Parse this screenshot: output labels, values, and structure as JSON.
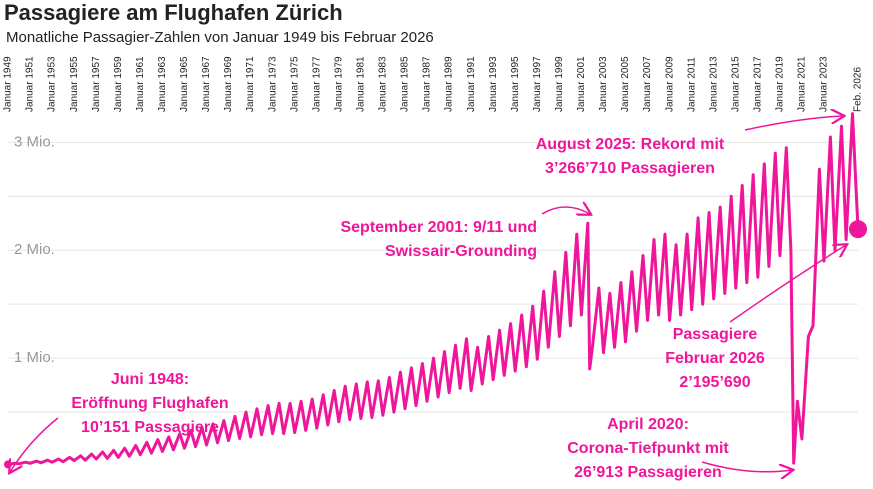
{
  "chart_data": {
    "type": "line",
    "title": "Passagiere am Flughafen Zürich",
    "subtitle": "Monatliche Passagier-Zahlen von Januar 1949 bis Februar 2026",
    "color": "#f0169b",
    "grid": true,
    "ylim": [
      0,
      3300000
    ],
    "yticks": [
      {
        "value": 1000000,
        "label": "1 Mio."
      },
      {
        "value": 2000000,
        "label": "2 Mio."
      },
      {
        "value": 3000000,
        "label": "3 Mio."
      }
    ],
    "ygrid": [
      500000,
      1000000,
      1500000,
      2000000,
      2500000,
      3000000
    ],
    "xlim": [
      "1949-01",
      "2026-02"
    ],
    "xticks": [
      {
        "value": "1949-01",
        "label": "Januar 1949"
      },
      {
        "value": "1951-01",
        "label": "Januar 1951"
      },
      {
        "value": "1953-01",
        "label": "Januar 1953"
      },
      {
        "value": "1955-01",
        "label": "Januar 1955"
      },
      {
        "value": "1957-01",
        "label": "Januar 1957"
      },
      {
        "value": "1959-01",
        "label": "Januar 1959"
      },
      {
        "value": "1961-01",
        "label": "Januar 1961"
      },
      {
        "value": "1963-01",
        "label": "Januar 1963"
      },
      {
        "value": "1965-01",
        "label": "Januar 1965"
      },
      {
        "value": "1967-01",
        "label": "Januar 1967"
      },
      {
        "value": "1969-01",
        "label": "Januar 1969"
      },
      {
        "value": "1971-01",
        "label": "Januar 1971"
      },
      {
        "value": "1973-01",
        "label": "Januar 1973"
      },
      {
        "value": "1975-01",
        "label": "Januar 1975"
      },
      {
        "value": "1977-01",
        "label": "Januar 1977"
      },
      {
        "value": "1979-01",
        "label": "Januar 1979"
      },
      {
        "value": "1981-01",
        "label": "Januar 1981"
      },
      {
        "value": "1983-01",
        "label": "Januar 1983"
      },
      {
        "value": "1985-01",
        "label": "Januar 1985"
      },
      {
        "value": "1987-01",
        "label": "Januar 1987"
      },
      {
        "value": "1989-01",
        "label": "Januar 1989"
      },
      {
        "value": "1991-01",
        "label": "Januar 1991"
      },
      {
        "value": "1993-01",
        "label": "Januar 1993"
      },
      {
        "value": "1995-01",
        "label": "Januar 1995"
      },
      {
        "value": "1997-01",
        "label": "Januar 1997"
      },
      {
        "value": "1999-01",
        "label": "Januar 1999"
      },
      {
        "value": "2001-01",
        "label": "Januar 2001"
      },
      {
        "value": "2003-01",
        "label": "Januar 2003"
      },
      {
        "value": "2005-01",
        "label": "Januar 2005"
      },
      {
        "value": "2007-01",
        "label": "Januar 2007"
      },
      {
        "value": "2009-01",
        "label": "Januar 2009"
      },
      {
        "value": "2011-01",
        "label": "Januar 2011"
      },
      {
        "value": "2013-01",
        "label": "Januar 2013"
      },
      {
        "value": "2015-01",
        "label": "Januar 2015"
      },
      {
        "value": "2017-01",
        "label": "Januar 2017"
      },
      {
        "value": "2019-01",
        "label": "Januar 2019"
      },
      {
        "value": "2021-01",
        "label": "Januar 2021"
      },
      {
        "value": "2023-01",
        "label": "Januar 2023"
      },
      {
        "value": "2026-02",
        "label": "Feb. 2026"
      }
    ],
    "x": [
      "1949-01",
      "1949-08",
      "1950-01",
      "1950-08",
      "1951-01",
      "1951-08",
      "1952-01",
      "1952-08",
      "1953-01",
      "1953-08",
      "1954-01",
      "1954-08",
      "1955-01",
      "1955-08",
      "1956-01",
      "1956-08",
      "1957-01",
      "1957-08",
      "1958-01",
      "1958-08",
      "1959-01",
      "1959-08",
      "1960-01",
      "1960-08",
      "1961-01",
      "1961-08",
      "1962-01",
      "1962-08",
      "1963-01",
      "1963-08",
      "1964-01",
      "1964-08",
      "1965-01",
      "1965-08",
      "1966-01",
      "1966-08",
      "1967-01",
      "1967-08",
      "1968-01",
      "1968-08",
      "1969-01",
      "1969-08",
      "1970-01",
      "1970-08",
      "1971-01",
      "1971-08",
      "1972-01",
      "1972-08",
      "1973-01",
      "1973-08",
      "1974-01",
      "1974-08",
      "1975-01",
      "1975-08",
      "1976-01",
      "1976-08",
      "1977-01",
      "1977-08",
      "1978-01",
      "1978-08",
      "1979-01",
      "1979-08",
      "1980-01",
      "1980-08",
      "1981-01",
      "1981-08",
      "1982-01",
      "1982-08",
      "1983-01",
      "1983-08",
      "1984-01",
      "1984-08",
      "1985-01",
      "1985-08",
      "1986-01",
      "1986-08",
      "1987-01",
      "1987-08",
      "1988-01",
      "1988-08",
      "1989-01",
      "1989-08",
      "1990-01",
      "1990-08",
      "1991-01",
      "1991-08",
      "1992-01",
      "1992-08",
      "1993-01",
      "1993-08",
      "1994-01",
      "1994-08",
      "1995-01",
      "1995-08",
      "1996-01",
      "1996-08",
      "1997-01",
      "1997-08",
      "1998-01",
      "1998-08",
      "1999-01",
      "1999-08",
      "2000-01",
      "2000-08",
      "2001-01",
      "2001-08",
      "2001-10",
      "2002-01",
      "2002-08",
      "2003-01",
      "2003-08",
      "2004-01",
      "2004-08",
      "2005-01",
      "2005-08",
      "2006-01",
      "2006-08",
      "2007-01",
      "2007-08",
      "2008-01",
      "2008-08",
      "2009-01",
      "2009-08",
      "2010-01",
      "2010-08",
      "2011-01",
      "2011-08",
      "2012-01",
      "2012-08",
      "2013-01",
      "2013-08",
      "2014-01",
      "2014-08",
      "2015-01",
      "2015-08",
      "2016-01",
      "2016-08",
      "2017-01",
      "2017-08",
      "2018-01",
      "2018-08",
      "2019-01",
      "2019-08",
      "2020-01",
      "2020-04",
      "2020-08",
      "2021-01",
      "2021-08",
      "2022-01",
      "2022-08",
      "2023-01",
      "2023-08",
      "2024-01",
      "2024-08",
      "2025-01",
      "2025-08",
      "2026-02"
    ],
    "values": [
      15000,
      25000,
      20000,
      35000,
      25000,
      45000,
      30000,
      55000,
      35000,
      65000,
      40000,
      80000,
      50000,
      95000,
      55000,
      110000,
      65000,
      130000,
      70000,
      145000,
      80000,
      165000,
      90000,
      190000,
      105000,
      220000,
      120000,
      245000,
      135000,
      270000,
      150000,
      300000,
      165000,
      330000,
      180000,
      360000,
      195000,
      390000,
      215000,
      420000,
      235000,
      460000,
      255000,
      500000,
      270000,
      530000,
      290000,
      560000,
      300000,
      580000,
      300000,
      580000,
      310000,
      600000,
      330000,
      620000,
      350000,
      660000,
      380000,
      700000,
      410000,
      740000,
      430000,
      760000,
      440000,
      780000,
      450000,
      790000,
      470000,
      820000,
      500000,
      870000,
      530000,
      910000,
      560000,
      950000,
      600000,
      1000000,
      640000,
      1060000,
      680000,
      1120000,
      720000,
      1180000,
      700000,
      1100000,
      760000,
      1200000,
      800000,
      1260000,
      840000,
      1320000,
      880000,
      1400000,
      920000,
      1480000,
      990000,
      1620000,
      1100000,
      1800000,
      1200000,
      1980000,
      1300000,
      2150000,
      1400000,
      2250000,
      900000,
      1100000,
      1650000,
      1050000,
      1600000,
      1100000,
      1700000,
      1150000,
      1800000,
      1250000,
      1950000,
      1350000,
      2100000,
      1400000,
      2150000,
      1350000,
      2050000,
      1400000,
      2150000,
      1450000,
      2300000,
      1500000,
      2350000,
      1550000,
      2400000,
      1600000,
      2500000,
      1650000,
      2600000,
      1700000,
      2700000,
      1750000,
      2800000,
      1850000,
      2900000,
      1950000,
      2950000,
      2000000,
      26913,
      600000,
      250000,
      1200000,
      1300000,
      2750000,
      1900000,
      3050000,
      2000000,
      3150000,
      2100000,
      3266710,
      2195690
    ],
    "annotations": [
      {
        "lines": [
          "Juni 1948:",
          "Eröffnung Flughafen",
          "10’151 Passagiere"
        ]
      },
      {
        "lines": [
          "September 2001: 9/11 und",
          "Swissair-Grounding"
        ]
      },
      {
        "lines": [
          "August 2025: Rekord mit",
          "3’266’710 Passagieren"
        ]
      },
      {
        "lines": [
          "Passagiere",
          "Februar 2026",
          "2’195’690"
        ]
      },
      {
        "lines": [
          "April 2020:",
          "Corona-Tiefpunkt mit",
          "26’913 Passagieren"
        ]
      }
    ]
  }
}
